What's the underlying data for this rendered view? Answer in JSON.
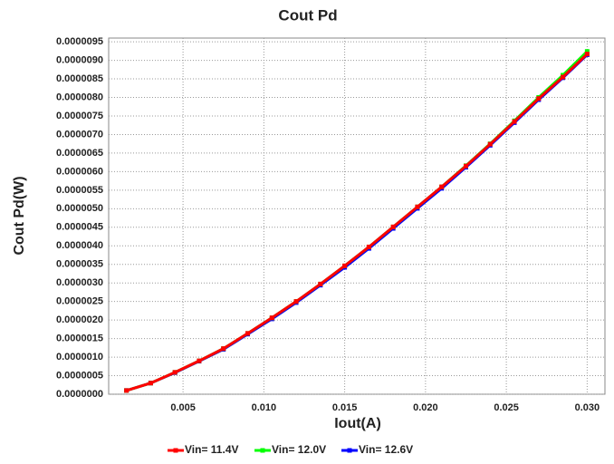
{
  "chart_data": {
    "type": "line",
    "title": "Cout Pd",
    "x_label": "Iout(A)",
    "y_label": "Cout Pd(W)",
    "x": [
      0.0015,
      0.003,
      0.0045,
      0.006,
      0.0075,
      0.009,
      0.0105,
      0.012,
      0.0135,
      0.015,
      0.0165,
      0.018,
      0.0195,
      0.021,
      0.0225,
      0.024,
      0.0255,
      0.027,
      0.0285,
      0.03
    ],
    "series": [
      {
        "name": "Vin= 11.4V",
        "color": "#ff0000",
        "values": [
          1e-07,
          3e-07,
          5.9e-07,
          9e-07,
          1.23e-06,
          1.64e-06,
          2.06e-06,
          2.5e-06,
          2.97e-06,
          3.46e-06,
          3.97e-06,
          4.51e-06,
          5.05e-06,
          5.59e-06,
          6.15e-06,
          6.74e-06,
          7.35e-06,
          7.97e-06,
          8.55e-06,
          9.17e-06
        ]
      },
      {
        "name": "Vin= 12.0V",
        "color": "#00ff00",
        "values": [
          1e-07,
          3e-07,
          5.9e-07,
          9e-07,
          1.23e-06,
          1.64e-06,
          2.06e-06,
          2.5e-06,
          2.97e-06,
          3.46e-06,
          3.97e-06,
          4.51e-06,
          5.05e-06,
          5.59e-06,
          6.16e-06,
          6.75e-06,
          7.37e-06,
          8e-06,
          8.6e-06,
          9.24e-06
        ]
      },
      {
        "name": "Vin= 12.6V",
        "color": "#0000ff",
        "values": [
          1e-07,
          3e-07,
          5.8e-07,
          8.9e-07,
          1.21e-06,
          1.62e-06,
          2.03e-06,
          2.47e-06,
          2.94e-06,
          3.42e-06,
          3.93e-06,
          4.47e-06,
          5.01e-06,
          5.55e-06,
          6.12e-06,
          6.71e-06,
          7.32e-06,
          7.94e-06,
          8.53e-06,
          9.15e-06
        ]
      }
    ],
    "xlim": [
      0.0004,
      0.0311
    ],
    "ylim": [
      0,
      9.6e-06
    ],
    "xticks": [
      {
        "value": 0.005,
        "label": "0.005"
      },
      {
        "value": 0.01,
        "label": "0.010"
      },
      {
        "value": 0.015,
        "label": "0.015"
      },
      {
        "value": 0.02,
        "label": "0.020"
      },
      {
        "value": 0.025,
        "label": "0.025"
      },
      {
        "value": 0.03,
        "label": "0.030"
      }
    ],
    "yticks": [
      {
        "value": 0,
        "label": "0.0000000"
      },
      {
        "value": 5e-07,
        "label": "0.0000005"
      },
      {
        "value": 1e-06,
        "label": "0.0000010"
      },
      {
        "value": 1.5e-06,
        "label": "0.0000015"
      },
      {
        "value": 2e-06,
        "label": "0.0000020"
      },
      {
        "value": 2.5e-06,
        "label": "0.0000025"
      },
      {
        "value": 3e-06,
        "label": "0.0000030"
      },
      {
        "value": 3.5e-06,
        "label": "0.0000035"
      },
      {
        "value": 4e-06,
        "label": "0.0000040"
      },
      {
        "value": 4.5e-06,
        "label": "0.0000045"
      },
      {
        "value": 5e-06,
        "label": "0.0000050"
      },
      {
        "value": 5.5e-06,
        "label": "0.0000055"
      },
      {
        "value": 6e-06,
        "label": "0.0000060"
      },
      {
        "value": 6.5e-06,
        "label": "0.0000065"
      },
      {
        "value": 7e-06,
        "label": "0.0000070"
      },
      {
        "value": 7.5e-06,
        "label": "0.0000075"
      },
      {
        "value": 8e-06,
        "label": "0.0000080"
      },
      {
        "value": 8.5e-06,
        "label": "0.0000085"
      },
      {
        "value": 9e-06,
        "label": "0.0000090"
      },
      {
        "value": 9.5e-06,
        "label": "0.0000095"
      }
    ],
    "grid": true,
    "legend": "bottom"
  }
}
